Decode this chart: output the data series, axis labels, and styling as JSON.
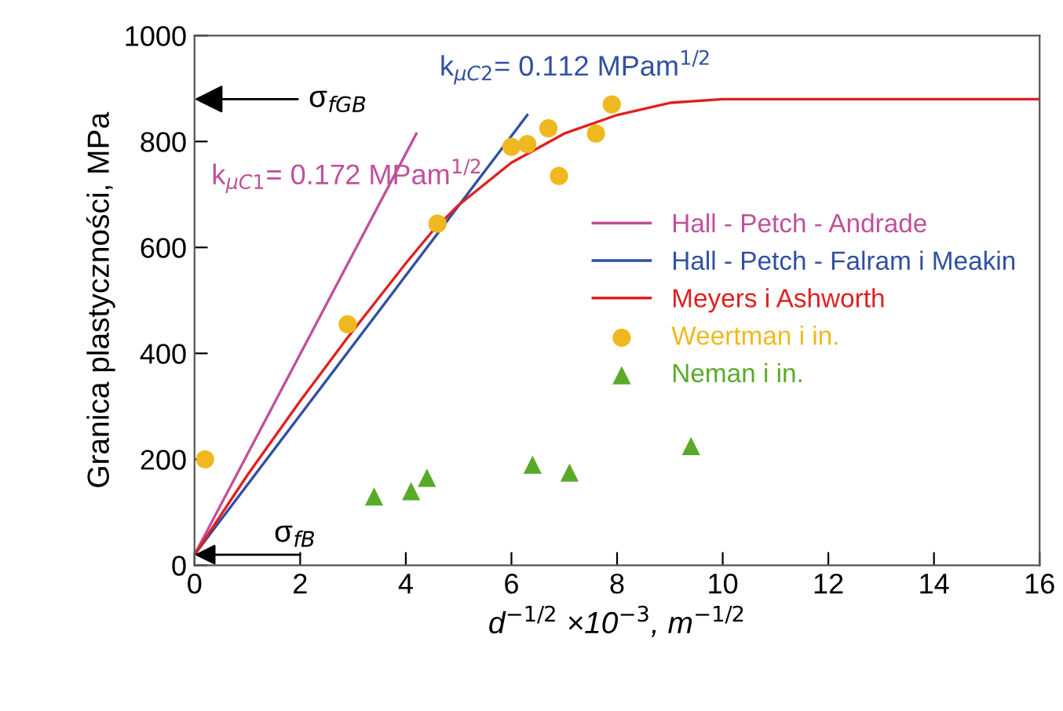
{
  "chart_data": {
    "type": "line",
    "xlabel": "d$^{−1/2}$ ×10$^{−3}$, m$^{−1/2}$",
    "ylabel": "Granica plastyczności, MPa",
    "xlim": [
      0,
      16
    ],
    "xticks": [
      0,
      2,
      4,
      6,
      8,
      10,
      12,
      14,
      16
    ],
    "ylim": [
      0,
      1000
    ],
    "yticks": [
      0,
      200,
      400,
      600,
      800,
      1000
    ],
    "grid": false,
    "legend": "right",
    "series": [
      {
        "name": "Hall - Petch - Andrade",
        "color": "#c0509a",
        "x": [
          0,
          4.2
        ],
        "values": [
          20,
          815
        ]
      },
      {
        "name": "Hall - Petch - Falram i Meakin",
        "color": "#3050a0",
        "x": [
          0,
          6.3
        ],
        "values": [
          20,
          850
        ]
      },
      {
        "name": "Meyers i Ashworth",
        "color": "#e02020",
        "x": [
          0,
          1,
          2,
          2.9,
          4,
          4.5,
          5,
          6,
          7,
          8,
          9,
          10,
          16
        ],
        "values": [
          20,
          170,
          310,
          430,
          570,
          630,
          680,
          760,
          815,
          850,
          873,
          880,
          880
        ]
      },
      {
        "name": "Weertman i in.",
        "type": "scatter",
        "marker": "circle",
        "color": "#f0b820",
        "x": [
          0.2,
          2.9,
          4.6,
          6.0,
          6.3,
          6.7,
          6.9,
          7.6,
          7.9
        ],
        "values": [
          200,
          455,
          645,
          790,
          795,
          825,
          735,
          815,
          870
        ]
      },
      {
        "name": "Neman i in.",
        "type": "scatter",
        "marker": "triangle",
        "color": "#5aaa2a",
        "x": [
          3.4,
          4.1,
          4.4,
          6.4,
          7.1,
          9.4
        ],
        "values": [
          130,
          140,
          165,
          190,
          175,
          225
        ]
      }
    ],
    "annotations": [
      "σ$_{fGB}$",
      {
        "text": "σ$_{fB}$",
        "x": 0,
        "y": 20
      },
      "k$_{μC1}$= 0.172 MPam$^{1/2}$",
      "k$_{μC2}$= 0.112 MPam$^{1/2}$"
    ]
  }
}
